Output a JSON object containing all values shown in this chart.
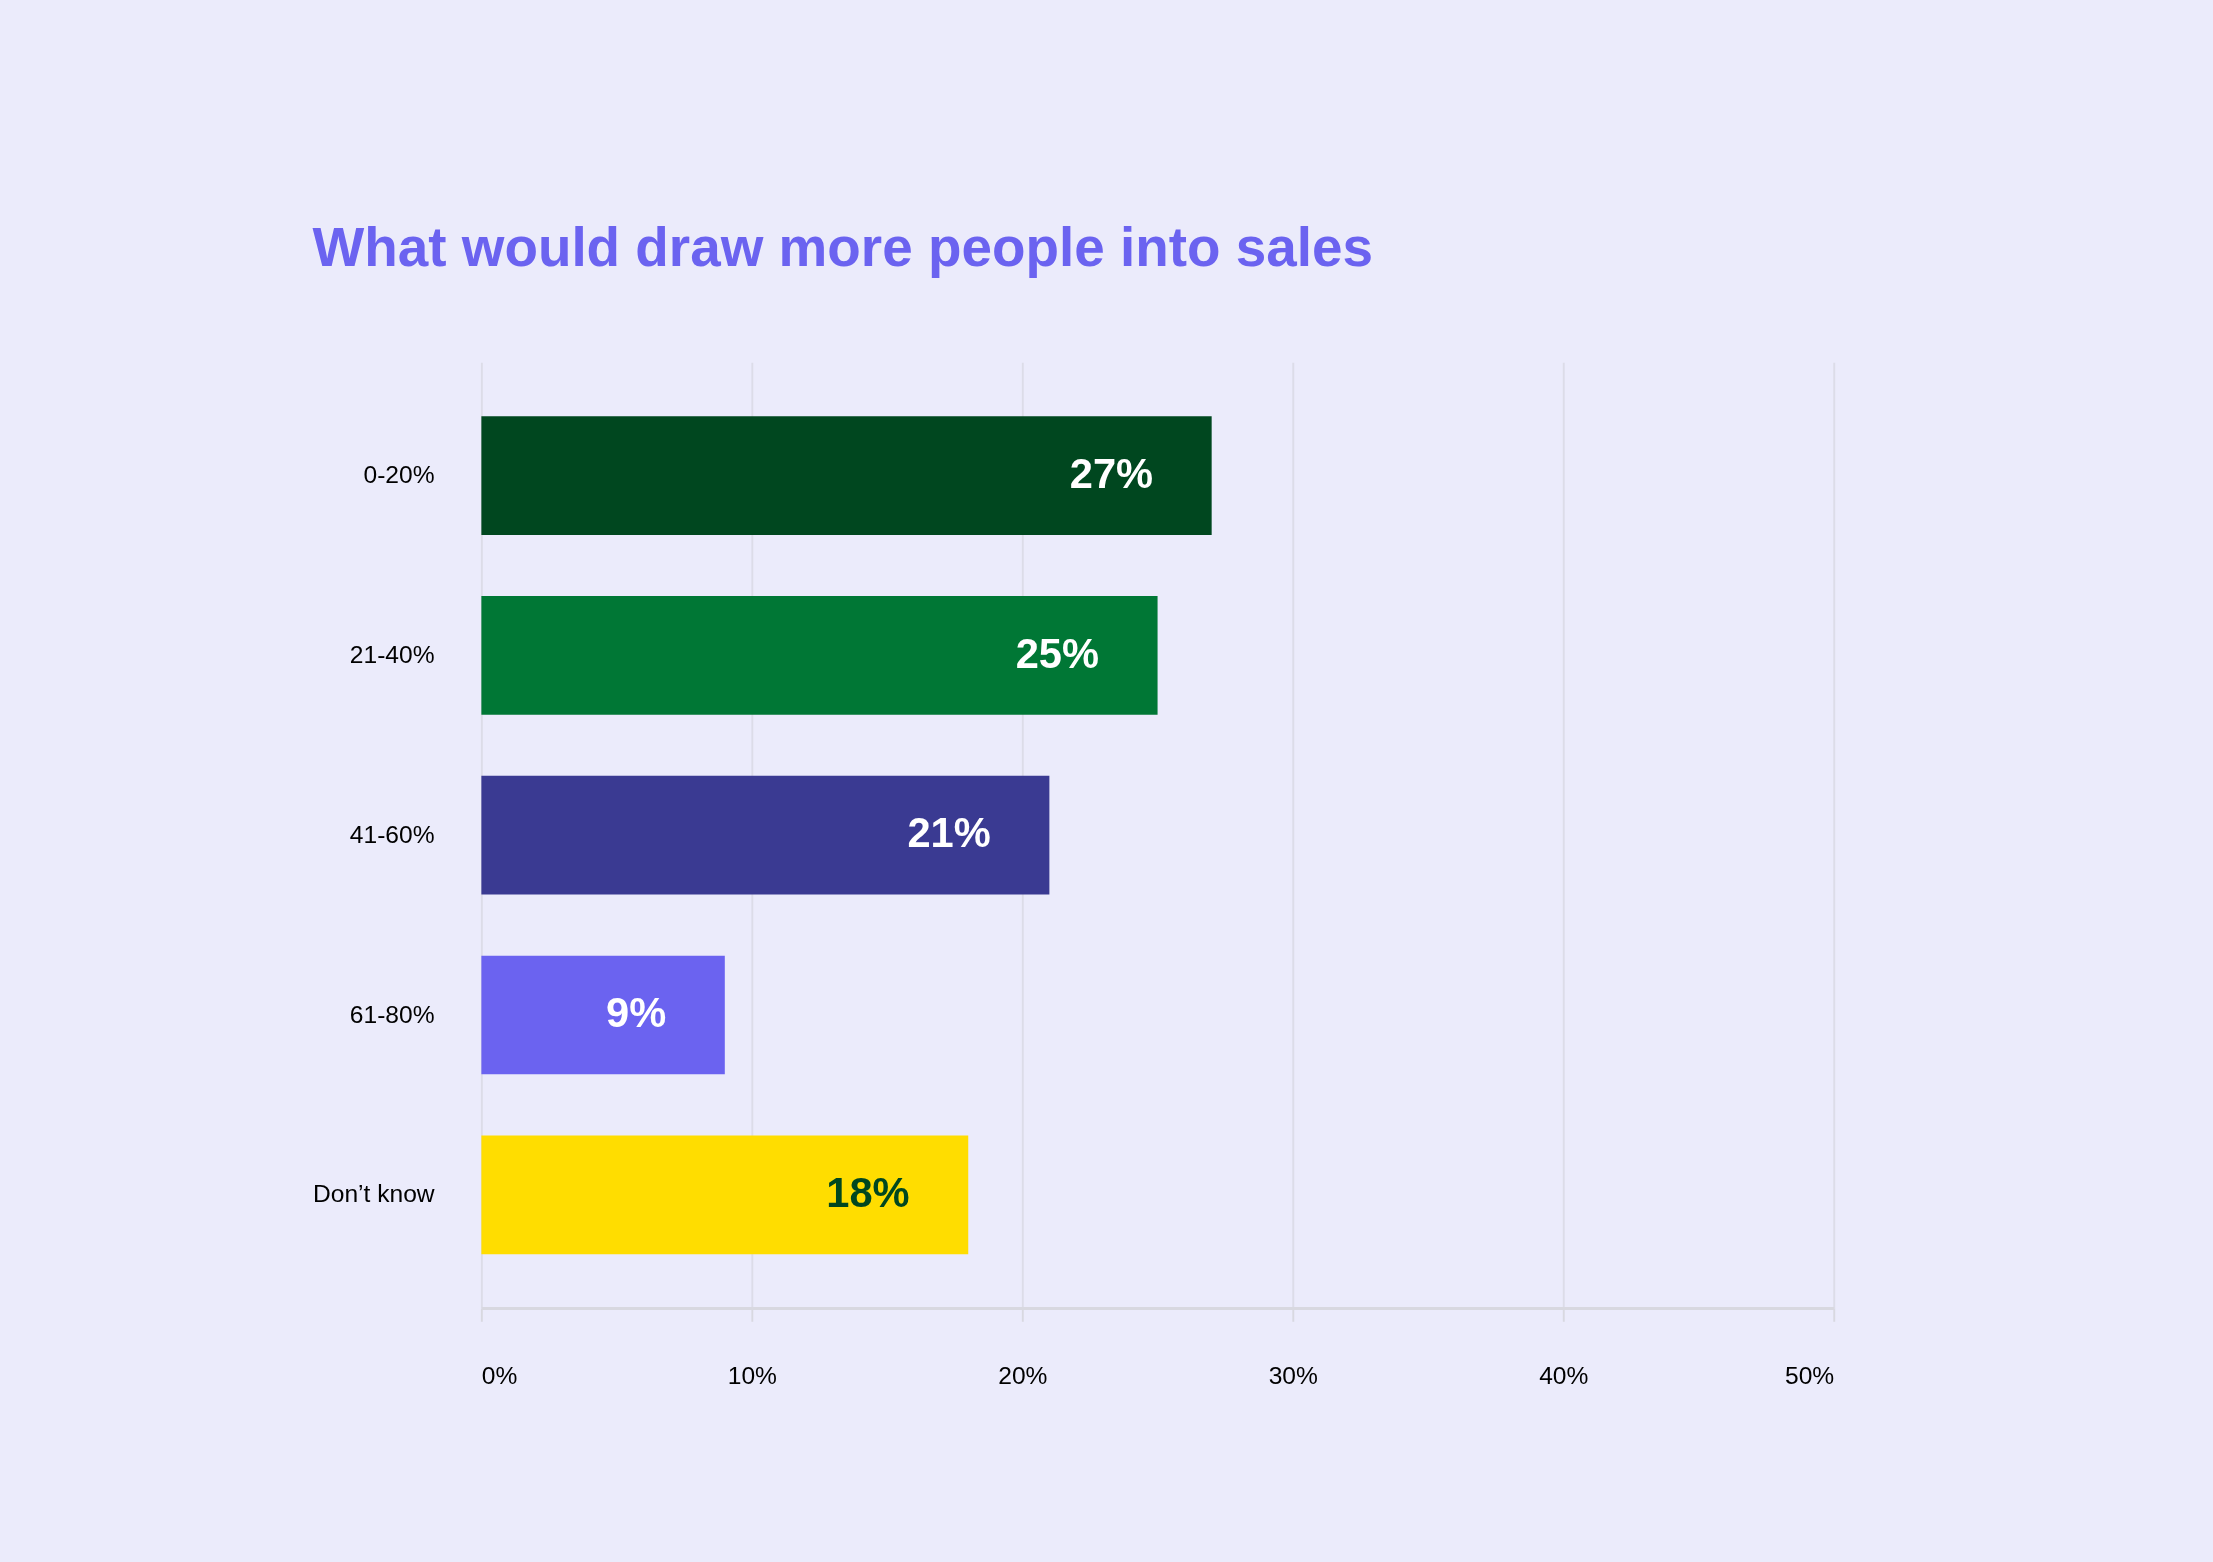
{
  "chart_data": {
    "type": "bar",
    "orientation": "horizontal",
    "title": "What would draw more people into sales",
    "categories": [
      "0-20%",
      "21-40%",
      "41-60%",
      "61-80%",
      "Don’t know"
    ],
    "values": [
      27,
      25,
      21,
      9,
      18
    ],
    "colors": [
      "#00471f",
      "#007735",
      "#3a3a92",
      "#6b63f0",
      "#ffdd00"
    ],
    "xlim": [
      0,
      50
    ],
    "xticks": [
      {
        "value": 0,
        "label": "0%"
      },
      {
        "value": 10,
        "label": "10%"
      },
      {
        "value": 20,
        "label": "20%"
      },
      {
        "value": 30,
        "label": "30%"
      },
      {
        "value": 40,
        "label": "40%"
      },
      {
        "value": 50,
        "label": "50%"
      }
    ],
    "value_labels": [
      "27%",
      "25%",
      "21%",
      "9%",
      "18%"
    ],
    "grid": "x"
  }
}
